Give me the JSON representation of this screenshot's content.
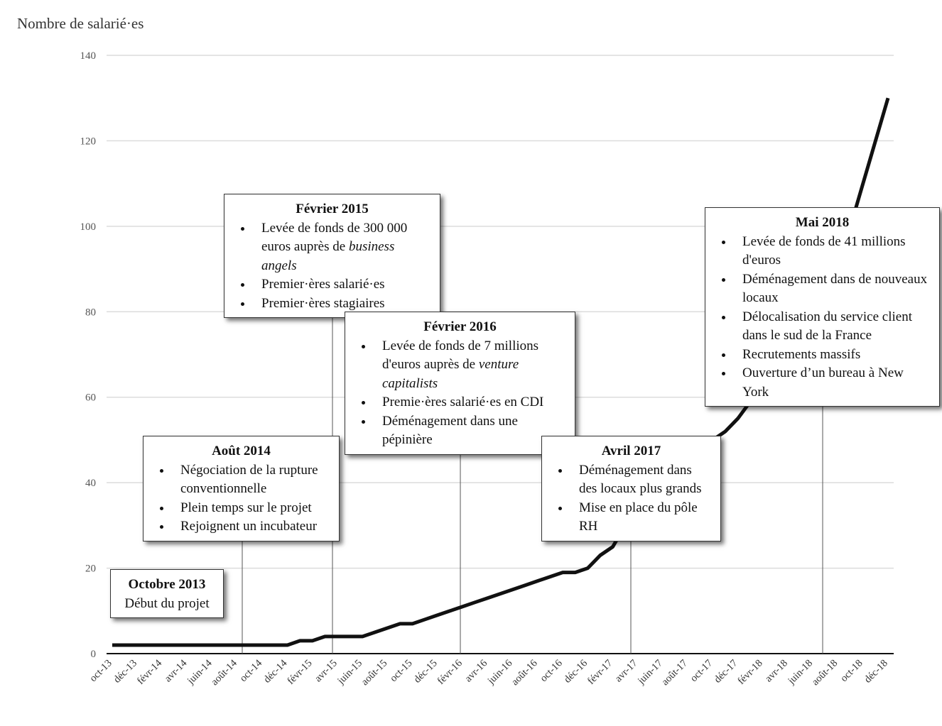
{
  "chart_data": {
    "type": "line",
    "ylabel": "Nombre de salarié·es",
    "categories": [
      "oct-13",
      null,
      "déc-13",
      null,
      "févr-14",
      null,
      "avr-14",
      null,
      "juin-14",
      null,
      "août-14",
      null,
      "oct-14",
      null,
      "déc-14",
      null,
      "févr-15",
      null,
      "avr-15",
      null,
      "juin-15",
      null,
      "août-15",
      null,
      "oct-15",
      null,
      "déc-15",
      null,
      "févr-16",
      null,
      "avr-16",
      null,
      "juin-16",
      null,
      "août-16",
      null,
      "oct-16",
      null,
      "déc-16",
      null,
      "févr-17",
      null,
      "avr-17",
      null,
      "juin-17",
      null,
      "août-17",
      null,
      "oct-17",
      null,
      "déc-17",
      null,
      "févr-18",
      null,
      "avr-18",
      null,
      "juin-18",
      null,
      "août-18",
      null,
      "oct-18",
      null,
      "déc-18"
    ],
    "values": [
      2,
      2,
      2,
      2,
      2,
      2,
      2,
      2,
      2,
      2,
      2,
      2,
      2,
      2,
      2,
      3,
      3,
      4,
      4,
      4,
      4,
      5,
      6,
      7,
      7,
      8,
      9,
      10,
      11,
      12,
      13,
      14,
      15,
      16,
      17,
      18,
      19,
      19,
      20,
      23,
      25,
      30,
      33,
      36,
      38,
      41,
      44,
      47,
      50,
      52,
      55,
      59,
      63,
      67,
      72,
      77,
      82,
      87,
      93,
      100,
      110,
      120,
      130
    ],
    "color": "#111111",
    "ylim": [
      0,
      140
    ],
    "yticks": [
      0,
      20,
      40,
      60,
      80,
      100,
      120,
      140
    ],
    "grid": true,
    "annotations": [
      {
        "title": "Octobre 2013",
        "text": "Début du projet"
      },
      {
        "title": "Août 2014",
        "items": [
          [
            "Négociation de la rupture conventionnelle"
          ],
          [
            "Plein temps sur le projet"
          ],
          [
            "Rejoignent un incubateur"
          ]
        ]
      },
      {
        "title": "Février 2015",
        "items": [
          [
            "Levée de fonds de 300 000 euros auprès de ",
            "business angels"
          ],
          [
            "Premier·ères salarié·es"
          ],
          [
            "Premier·ères stagiaires"
          ]
        ]
      },
      {
        "title": "Février 2016",
        "items": [
          [
            "Levée de fonds de 7 millions d'euros auprès de ",
            "venture capitalists"
          ],
          [
            "Premie·ères salarié·es en CDI"
          ],
          [
            "Déménagement dans une pépinière"
          ]
        ]
      },
      {
        "title": "Avril 2017",
        "items": [
          [
            "Déménagement dans des locaux plus grands"
          ],
          [
            "Mise en place du pôle RH"
          ]
        ]
      },
      {
        "title": "Mai 2018",
        "items": [
          [
            "Levée de fonds de 41 millions d'euros"
          ],
          [
            "Déménagement dans de nouveaux locaux"
          ],
          [
            "Délocalisation du service client dans le sud de la France"
          ],
          [
            "Recrutements massifs"
          ],
          [
            "Ouverture d’un bureau à New York"
          ]
        ]
      }
    ]
  }
}
